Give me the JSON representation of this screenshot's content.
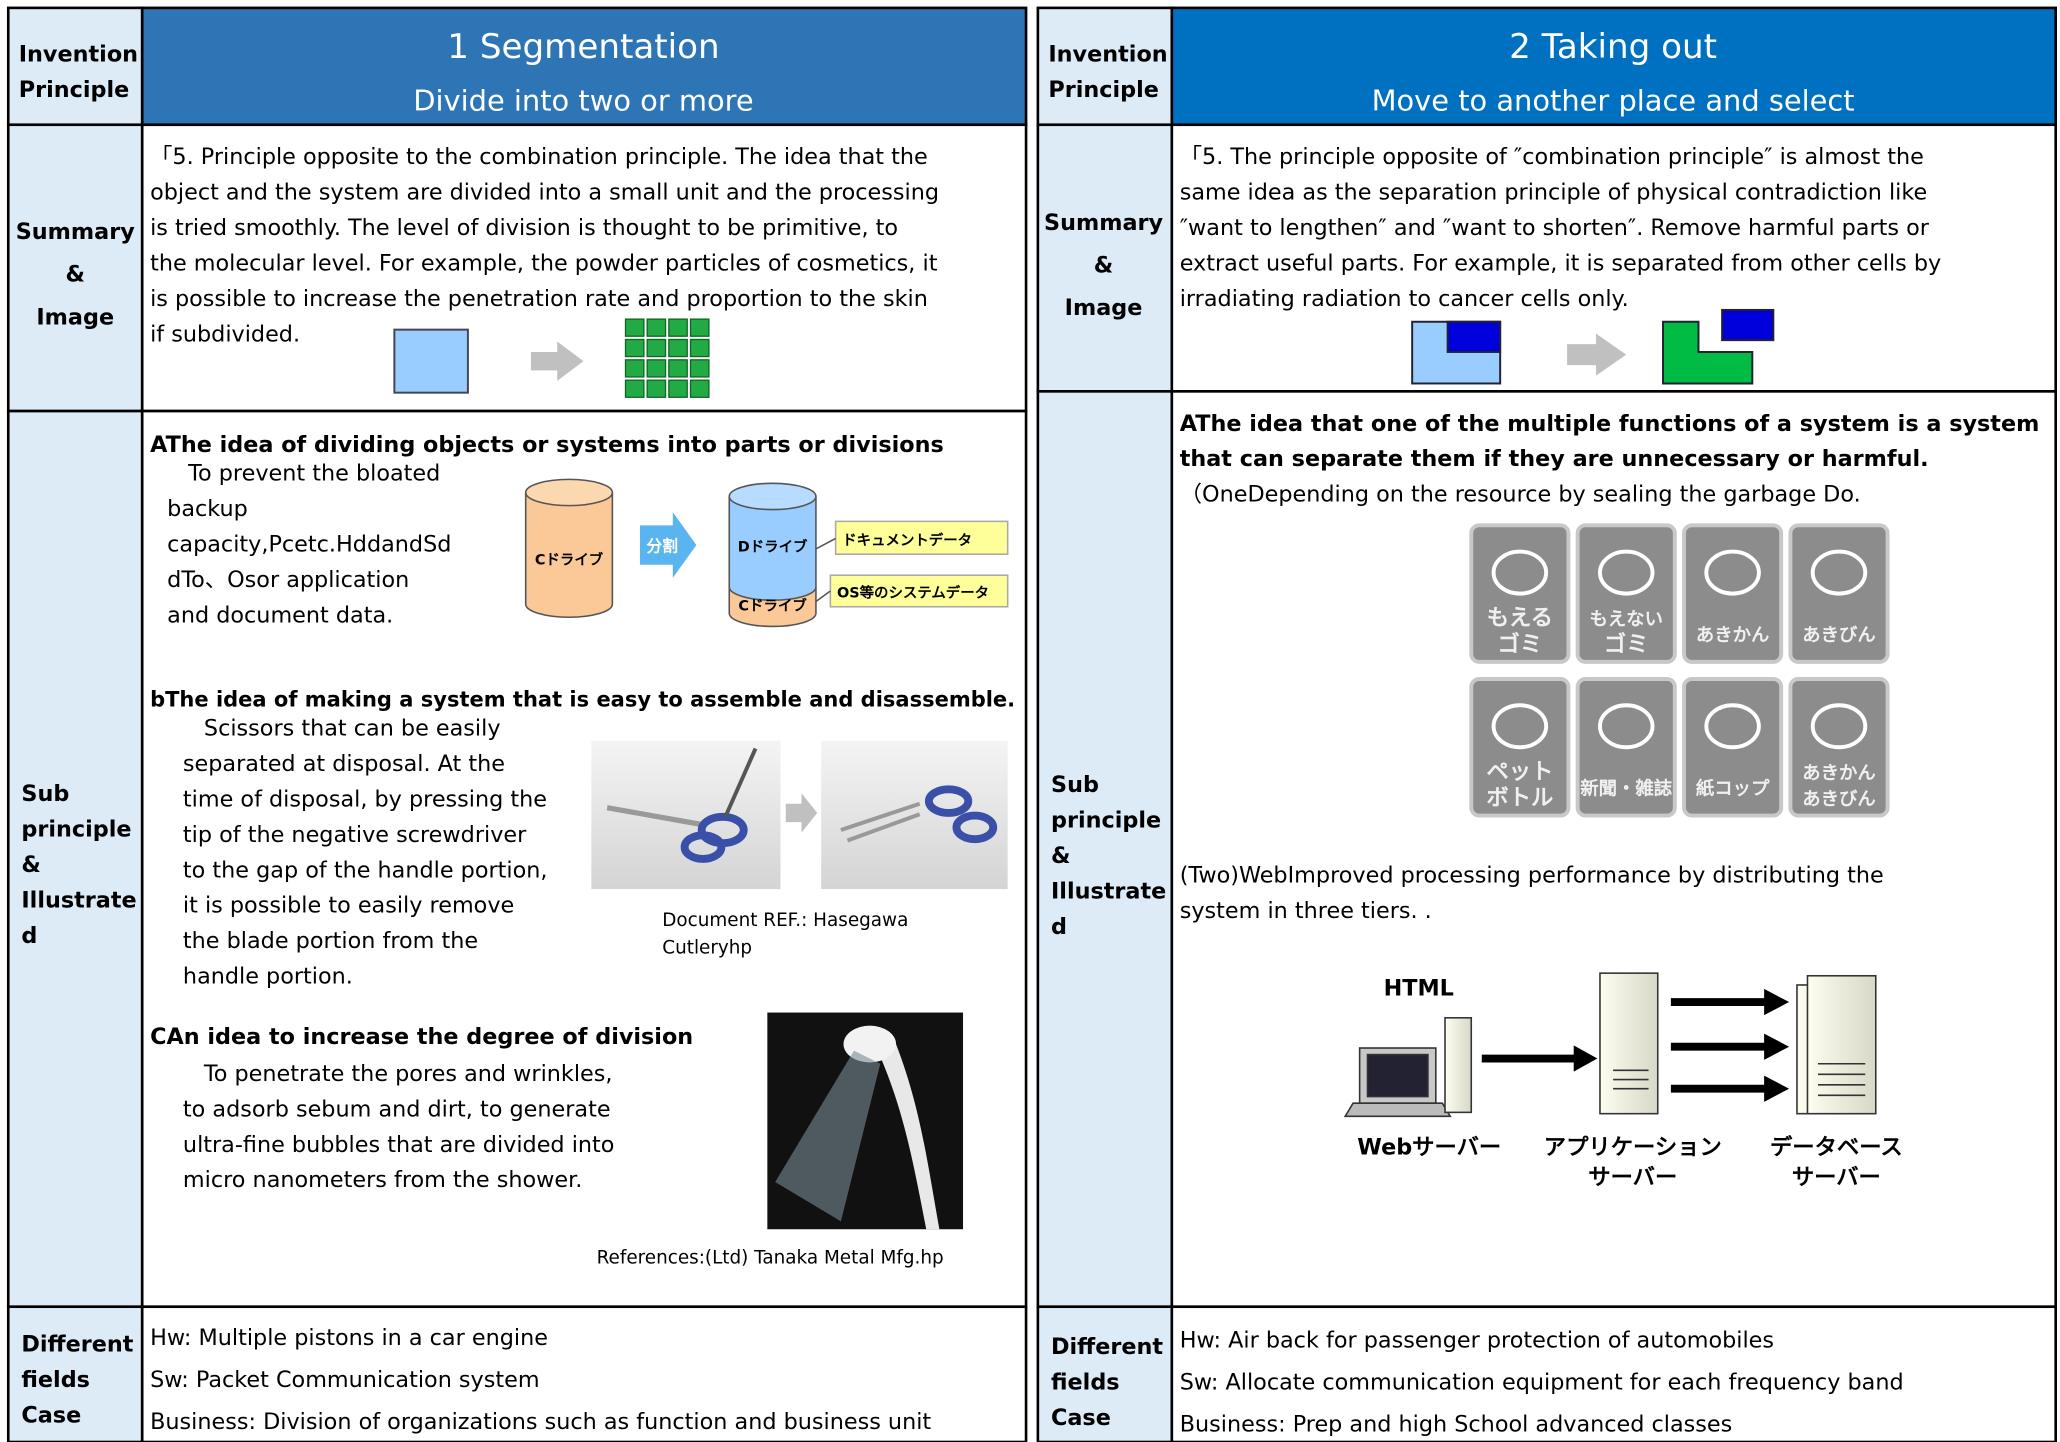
{
  "panels": [
    {
      "header_label": [
        "Invention",
        "Principle"
      ],
      "title": "1 Segmentation",
      "subtitle": "Divide into two or more",
      "summary_label": [
        "Summary",
        "&",
        "Image"
      ],
      "summary": [
        "「5. Principle opposite to the combination principle. The idea that the",
        "object and the system are divided into a small unit and the processing",
        "is tried smoothly. The level of division is thought to be primitive, to",
        "the molecular level. For example, the powder particles of cosmetics, it",
        "is possible to increase the penetration rate and proportion to the skin",
        "if subdivided."
      ],
      "sub_label": [
        "Sub",
        "principle",
        "&",
        "Illustrate",
        "d"
      ],
      "sub": [
        {
          "heading": [
            "AThe idea of dividing objects or systems into parts or divisions"
          ],
          "lines": [
            "To prevent the bloated",
            "backup",
            "capacity,Pcetc.HddandSd",
            "dTo、Osor application",
            "and document data."
          ]
        },
        {
          "heading": [
            "bThe idea of making a system that is easy to assemble and disassemble."
          ],
          "lines": [
            "Scissors that can be easily",
            "separated at disposal. At the",
            "time of disposal, by pressing the",
            "tip of the negative screwdriver",
            "to the gap of the handle portion,",
            "it is possible to easily remove",
            "the blade portion from the",
            "handle portion."
          ]
        },
        {
          "heading": [
            "CAn idea to increase the degree of division"
          ],
          "lines": [
            "To penetrate the pores and wrinkles,",
            "to adsorb sebum and dirt, to generate",
            "ultra-fine bubbles that are divided into",
            "micro nanometers from the shower."
          ]
        }
      ],
      "figures": {
        "drive": [
          "Cドライブ",
          "分割",
          "Dドライブ",
          "Cドライブ",
          "ドキュメントデータ",
          "OS等のシステムデータ"
        ],
        "scissors_caption": [
          "Document REF.: Hasegawa",
          "Cutleryhp"
        ],
        "shower_caption": "References:(Ltd) Tanaka Metal Mfg.hp"
      },
      "cases_label": [
        "Different",
        "fields",
        "Case"
      ],
      "cases": [
        "Hw: Multiple pistons in a car engine",
        "Sw: Packet Communication system",
        "Business: Division of organizations such as function and business unit"
      ]
    },
    {
      "header_label": [
        "Invention",
        "Principle"
      ],
      "title": "2 Taking out",
      "subtitle": "Move to another place and select",
      "summary_label": [
        "Summary",
        "&",
        "Image"
      ],
      "summary": [
        "「5. The principle opposite of ″combination principle″ is almost the",
        "same idea as the separation principle of physical contradiction like",
        "″want to lengthen″ and ″want to shorten″. Remove harmful parts or",
        "extract useful parts. For example, it is separated from other cells by",
        "irradiating radiation to cancer cells only."
      ],
      "sub_label": [
        "Sub",
        "principle",
        "&",
        "Illustrate",
        "d"
      ],
      "sub": [
        {
          "heading": [
            "AThe idea that one of the multiple functions of a system is a system",
            "that can separate them if they are unnecessary or harmful."
          ],
          "lines": [
            "（OneDepending on the resource by sealing the garbage Do."
          ]
        },
        {
          "heading": [],
          "lines": [
            "(Two)WebImproved processing performance by distributing the",
            "system in three tiers. ."
          ]
        }
      ],
      "figures": {
        "icons": [
          [
            "もえる",
            "ゴミ"
          ],
          [
            "もえない",
            "ゴミ"
          ],
          [
            "あきかん"
          ],
          [
            "あきびん"
          ],
          [
            "ペット",
            "ボトル"
          ],
          [
            "新聞・雑誌"
          ],
          [
            "紙コップ"
          ],
          [
            "あきかん",
            "あきびん"
          ]
        ],
        "network": {
          "html": "HTML",
          "web": [
            "Webサーバー"
          ],
          "app": [
            "アプリケーション",
            "サーバー"
          ],
          "db": [
            "データベース",
            "サーバー"
          ]
        }
      },
      "cases_label": [
        "Different",
        "fields",
        "Case"
      ],
      "cases": [
        "Hw: Air back for passenger protection of automobiles",
        "Sw: Allocate communication equipment for each frequency band",
        "Business: Prep and high School advanced classes"
      ]
    }
  ]
}
